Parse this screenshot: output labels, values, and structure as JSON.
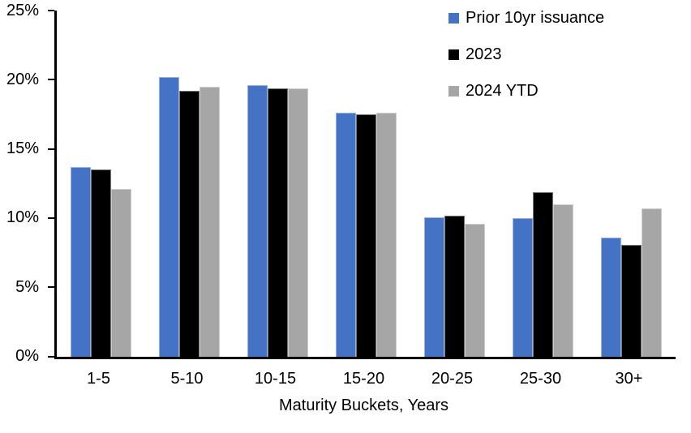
{
  "chart_data": {
    "type": "bar",
    "title": "",
    "categories": [
      "1-5",
      "5-10",
      "10-15",
      "15-20",
      "20-25",
      "25-30",
      "30+"
    ],
    "series": [
      {
        "name": "Prior 10yr issuance",
        "color": "#4472C4",
        "values": [
          13.7,
          20.2,
          19.6,
          17.6,
          10.1,
          10.0,
          8.6
        ]
      },
      {
        "name": "2023",
        "color": "#000000",
        "values": [
          13.5,
          19.2,
          19.4,
          17.5,
          10.2,
          11.9,
          8.1
        ]
      },
      {
        "name": "2024 YTD",
        "color": "#A6A6A6",
        "values": [
          12.1,
          19.5,
          19.4,
          17.6,
          9.6,
          11.0,
          10.7
        ]
      }
    ],
    "xlabel": "Maturity Buckets, Years",
    "ylabel": "",
    "ylim": [
      0,
      25
    ],
    "ytick_step": 5,
    "ytick_labels_top_down": [
      "25%",
      "20%",
      "15%",
      "10%",
      "5%",
      "0%"
    ],
    "grid": false,
    "legend_position": "top-right",
    "axis_color": "#000000",
    "background_color": "#FFFFFF"
  }
}
